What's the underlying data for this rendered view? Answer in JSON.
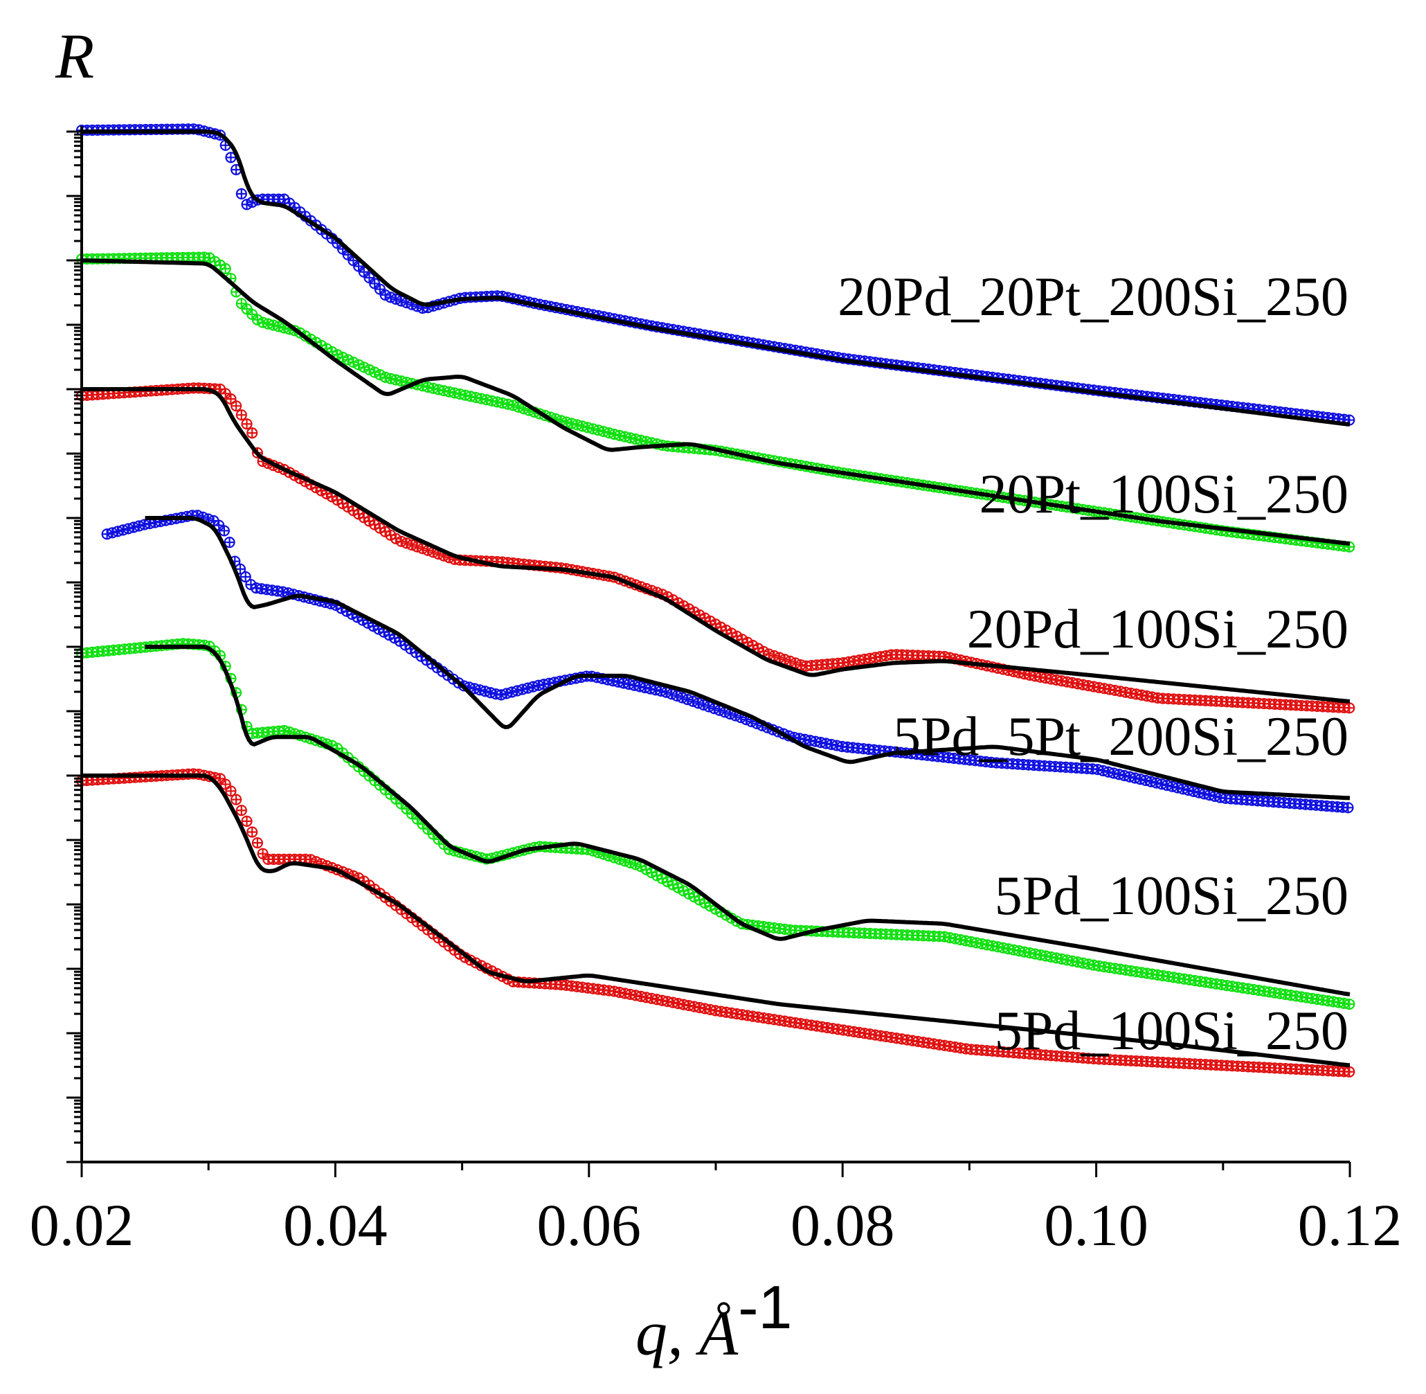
{
  "chart_data": {
    "type": "line",
    "title": "",
    "ylabel": "R",
    "xlabel": "q, Å",
    "xlabel_exponent": "-1",
    "xlim": [
      0.02,
      0.12
    ],
    "x_ticks": [
      "0.02",
      "0.04",
      "0.06",
      "0.08",
      "0.10",
      "0.12"
    ],
    "y_scale": "log (curves offset vertically, no tick labels)",
    "legend": "labels placed at right end of each curve",
    "colors": {
      "blue": "#1010e0",
      "green": "#10e010",
      "red": "#e01010",
      "fit": "#000000"
    },
    "series": [
      {
        "name": "20Pd_20Pt_200Si_250",
        "color": "#1010e0",
        "fit": [
          [
            0.02,
            0.0
          ],
          [
            0.03,
            0.0
          ],
          [
            0.031,
            -0.03
          ],
          [
            0.0322,
            -0.3
          ],
          [
            0.0332,
            -0.95
          ],
          [
            0.034,
            -1.1
          ],
          [
            0.036,
            -1.15
          ],
          [
            0.04,
            -1.65
          ],
          [
            0.0445,
            -2.45
          ],
          [
            0.047,
            -2.7
          ],
          [
            0.05,
            -2.6
          ],
          [
            0.053,
            -2.58
          ],
          [
            0.056,
            -2.7
          ],
          [
            0.065,
            -3.05
          ],
          [
            0.08,
            -3.55
          ],
          [
            0.1,
            -4.05
          ],
          [
            0.12,
            -4.55
          ]
        ],
        "data": [
          [
            0.02,
            0.02
          ],
          [
            0.029,
            0.04
          ],
          [
            0.031,
            -0.06
          ],
          [
            0.0322,
            -0.6
          ],
          [
            0.0328,
            -1.15
          ],
          [
            0.034,
            -1.05
          ],
          [
            0.036,
            -1.05
          ],
          [
            0.04,
            -1.7
          ],
          [
            0.044,
            -2.55
          ],
          [
            0.047,
            -2.75
          ],
          [
            0.05,
            -2.58
          ],
          [
            0.053,
            -2.55
          ],
          [
            0.056,
            -2.68
          ],
          [
            0.065,
            -3.02
          ],
          [
            0.08,
            -3.52
          ],
          [
            0.1,
            -4.02
          ],
          [
            0.12,
            -4.48
          ]
        ]
      },
      {
        "name": "20Pt_100Si_250",
        "color": "#10e010",
        "fit": [
          [
            0.02,
            -2.0
          ],
          [
            0.03,
            -2.05
          ],
          [
            0.0315,
            -2.3
          ],
          [
            0.0335,
            -2.65
          ],
          [
            0.036,
            -2.95
          ],
          [
            0.04,
            -3.55
          ],
          [
            0.044,
            -4.1
          ],
          [
            0.047,
            -3.85
          ],
          [
            0.05,
            -3.8
          ],
          [
            0.054,
            -4.1
          ],
          [
            0.058,
            -4.6
          ],
          [
            0.0615,
            -4.95
          ],
          [
            0.064,
            -4.9
          ],
          [
            0.068,
            -4.85
          ],
          [
            0.075,
            -5.15
          ],
          [
            0.09,
            -5.6
          ],
          [
            0.105,
            -6.05
          ],
          [
            0.12,
            -6.4
          ]
        ],
        "data": [
          [
            0.02,
            -1.98
          ],
          [
            0.03,
            -1.95
          ],
          [
            0.0315,
            -2.15
          ],
          [
            0.0325,
            -2.65
          ],
          [
            0.034,
            -2.95
          ],
          [
            0.037,
            -3.1
          ],
          [
            0.04,
            -3.45
          ],
          [
            0.044,
            -3.82
          ],
          [
            0.048,
            -4.0
          ],
          [
            0.054,
            -4.25
          ],
          [
            0.058,
            -4.5
          ],
          [
            0.062,
            -4.7
          ],
          [
            0.066,
            -4.88
          ],
          [
            0.07,
            -4.95
          ],
          [
            0.08,
            -5.3
          ],
          [
            0.095,
            -5.75
          ],
          [
            0.11,
            -6.2
          ],
          [
            0.12,
            -6.45
          ]
        ]
      },
      {
        "name": "20Pd_100Si_250",
        "color": "#e01010",
        "fit": [
          [
            0.02,
            -4.0
          ],
          [
            0.03,
            -4.0
          ],
          [
            0.031,
            -4.1
          ],
          [
            0.032,
            -4.5
          ],
          [
            0.034,
            -5.05
          ],
          [
            0.036,
            -5.25
          ],
          [
            0.04,
            -5.6
          ],
          [
            0.045,
            -6.2
          ],
          [
            0.0495,
            -6.6
          ],
          [
            0.053,
            -6.75
          ],
          [
            0.058,
            -6.8
          ],
          [
            0.062,
            -6.92
          ],
          [
            0.066,
            -7.25
          ],
          [
            0.07,
            -7.75
          ],
          [
            0.074,
            -8.2
          ],
          [
            0.0775,
            -8.45
          ],
          [
            0.08,
            -8.35
          ],
          [
            0.084,
            -8.25
          ],
          [
            0.088,
            -8.22
          ],
          [
            0.1,
            -8.45
          ],
          [
            0.12,
            -8.85
          ]
        ],
        "data": [
          [
            0.02,
            -4.1
          ],
          [
            0.029,
            -3.98
          ],
          [
            0.031,
            -4.0
          ],
          [
            0.032,
            -4.2
          ],
          [
            0.0335,
            -4.7
          ],
          [
            0.034,
            -5.1
          ],
          [
            0.036,
            -5.25
          ],
          [
            0.04,
            -5.7
          ],
          [
            0.045,
            -6.35
          ],
          [
            0.0495,
            -6.65
          ],
          [
            0.053,
            -6.68
          ],
          [
            0.058,
            -6.78
          ],
          [
            0.062,
            -6.92
          ],
          [
            0.066,
            -7.2
          ],
          [
            0.07,
            -7.65
          ],
          [
            0.074,
            -8.1
          ],
          [
            0.077,
            -8.3
          ],
          [
            0.08,
            -8.25
          ],
          [
            0.084,
            -8.12
          ],
          [
            0.088,
            -8.15
          ],
          [
            0.095,
            -8.45
          ],
          [
            0.105,
            -8.8
          ],
          [
            0.12,
            -8.95
          ]
        ]
      },
      {
        "name": "5Pd_5Pt_200Si_250",
        "color": "#1010e0",
        "fit": [
          [
            0.025,
            -6.0
          ],
          [
            0.029,
            -6.0
          ],
          [
            0.0305,
            -6.15
          ],
          [
            0.032,
            -6.75
          ],
          [
            0.0332,
            -7.4
          ],
          [
            0.0345,
            -7.35
          ],
          [
            0.037,
            -7.2
          ],
          [
            0.04,
            -7.3
          ],
          [
            0.045,
            -7.8
          ],
          [
            0.05,
            -8.6
          ],
          [
            0.0535,
            -9.3
          ],
          [
            0.056,
            -8.75
          ],
          [
            0.059,
            -8.45
          ],
          [
            0.063,
            -8.45
          ],
          [
            0.068,
            -8.7
          ],
          [
            0.073,
            -9.1
          ],
          [
            0.077,
            -9.55
          ],
          [
            0.0805,
            -9.8
          ],
          [
            0.084,
            -9.65
          ],
          [
            0.092,
            -9.55
          ],
          [
            0.1,
            -9.75
          ],
          [
            0.11,
            -10.25
          ],
          [
            0.12,
            -10.35
          ]
        ],
        "data": [
          [
            0.022,
            -6.25
          ],
          [
            0.025,
            -6.1
          ],
          [
            0.029,
            -5.95
          ],
          [
            0.0305,
            -6.05
          ],
          [
            0.0315,
            -6.25
          ],
          [
            0.032,
            -6.65
          ],
          [
            0.0335,
            -7.08
          ],
          [
            0.036,
            -7.15
          ],
          [
            0.04,
            -7.35
          ],
          [
            0.045,
            -7.9
          ],
          [
            0.05,
            -8.6
          ],
          [
            0.053,
            -8.75
          ],
          [
            0.056,
            -8.6
          ],
          [
            0.06,
            -8.45
          ],
          [
            0.066,
            -8.7
          ],
          [
            0.072,
            -9.1
          ],
          [
            0.076,
            -9.4
          ],
          [
            0.08,
            -9.55
          ],
          [
            0.085,
            -9.65
          ],
          [
            0.092,
            -9.8
          ],
          [
            0.1,
            -9.9
          ],
          [
            0.11,
            -10.35
          ],
          [
            0.12,
            -10.5
          ]
        ]
      },
      {
        "name": "5Pd_100Si_250",
        "color": "#10e010",
        "fit": [
          [
            0.025,
            -8.0
          ],
          [
            0.03,
            -8.0
          ],
          [
            0.031,
            -8.2
          ],
          [
            0.0322,
            -8.8
          ],
          [
            0.0332,
            -9.55
          ],
          [
            0.035,
            -9.4
          ],
          [
            0.038,
            -9.4
          ],
          [
            0.042,
            -9.85
          ],
          [
            0.046,
            -10.5
          ],
          [
            0.049,
            -11.1
          ],
          [
            0.052,
            -11.35
          ],
          [
            0.055,
            -11.15
          ],
          [
            0.059,
            -11.05
          ],
          [
            0.064,
            -11.3
          ],
          [
            0.068,
            -11.7
          ],
          [
            0.072,
            -12.3
          ],
          [
            0.075,
            -12.55
          ],
          [
            0.078,
            -12.4
          ],
          [
            0.082,
            -12.25
          ],
          [
            0.088,
            -12.3
          ],
          [
            0.1,
            -12.7
          ],
          [
            0.12,
            -13.4
          ]
        ],
        "data": [
          [
            0.02,
            -8.1
          ],
          [
            0.028,
            -7.95
          ],
          [
            0.03,
            -7.98
          ],
          [
            0.031,
            -8.15
          ],
          [
            0.032,
            -8.6
          ],
          [
            0.0332,
            -9.35
          ],
          [
            0.036,
            -9.3
          ],
          [
            0.04,
            -9.55
          ],
          [
            0.045,
            -10.4
          ],
          [
            0.049,
            -11.15
          ],
          [
            0.052,
            -11.3
          ],
          [
            0.056,
            -11.1
          ],
          [
            0.06,
            -11.15
          ],
          [
            0.064,
            -11.4
          ],
          [
            0.068,
            -11.85
          ],
          [
            0.072,
            -12.3
          ],
          [
            0.076,
            -12.4
          ],
          [
            0.082,
            -12.45
          ],
          [
            0.088,
            -12.5
          ],
          [
            0.1,
            -12.95
          ],
          [
            0.11,
            -13.25
          ],
          [
            0.12,
            -13.55
          ]
        ]
      },
      {
        "name": "5Pd_100Si_250",
        "color": "#e01010",
        "fit": [
          [
            0.02,
            -10.0
          ],
          [
            0.03,
            -10.0
          ],
          [
            0.031,
            -10.2
          ],
          [
            0.0325,
            -10.75
          ],
          [
            0.034,
            -11.45
          ],
          [
            0.035,
            -11.5
          ],
          [
            0.0365,
            -11.35
          ],
          [
            0.04,
            -11.45
          ],
          [
            0.045,
            -12.0
          ],
          [
            0.049,
            -12.6
          ],
          [
            0.052,
            -13.05
          ],
          [
            0.055,
            -13.2
          ],
          [
            0.06,
            -13.1
          ],
          [
            0.065,
            -13.25
          ],
          [
            0.075,
            -13.55
          ],
          [
            0.09,
            -13.85
          ],
          [
            0.105,
            -14.15
          ],
          [
            0.12,
            -14.5
          ]
        ],
        "data": [
          [
            0.02,
            -10.08
          ],
          [
            0.029,
            -9.97
          ],
          [
            0.031,
            -10.05
          ],
          [
            0.032,
            -10.3
          ],
          [
            0.0335,
            -10.9
          ],
          [
            0.0345,
            -11.3
          ],
          [
            0.036,
            -11.3
          ],
          [
            0.038,
            -11.3
          ],
          [
            0.042,
            -11.6
          ],
          [
            0.046,
            -12.2
          ],
          [
            0.05,
            -12.8
          ],
          [
            0.054,
            -13.2
          ],
          [
            0.058,
            -13.25
          ],
          [
            0.062,
            -13.35
          ],
          [
            0.07,
            -13.65
          ],
          [
            0.08,
            -13.95
          ],
          [
            0.09,
            -14.25
          ],
          [
            0.1,
            -14.4
          ],
          [
            0.11,
            -14.5
          ],
          [
            0.12,
            -14.6
          ]
        ]
      }
    ]
  }
}
